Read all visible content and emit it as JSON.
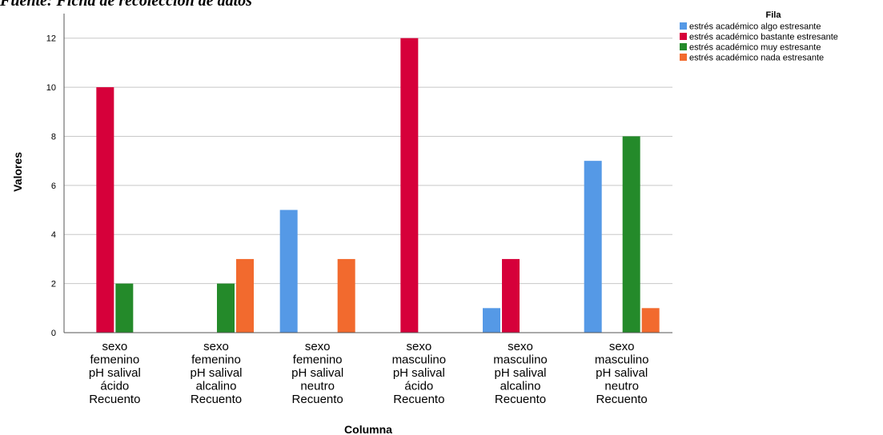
{
  "caption": "Fuente: Ficha de recolección de datos",
  "chart_data": {
    "type": "bar",
    "xlabel": "Columna",
    "ylabel": "Valores",
    "ylim": [
      0,
      13
    ],
    "yticks": [
      0,
      2,
      4,
      6,
      8,
      10,
      12
    ],
    "grid": true,
    "legend_title": "Fila",
    "legend_position": "top-right",
    "categories": [
      [
        "sexo",
        "femenino",
        "pH salival",
        "ácido",
        "Recuento"
      ],
      [
        "sexo",
        "femenino",
        "pH salival",
        "alcalino",
        "Recuento"
      ],
      [
        "sexo",
        "femenino",
        "pH salival",
        "neutro",
        "Recuento"
      ],
      [
        "sexo",
        "masculino",
        "pH salival",
        "ácido",
        "Recuento"
      ],
      [
        "sexo",
        "masculino",
        "pH salival",
        "alcalino",
        "Recuento"
      ],
      [
        "sexo",
        "masculino",
        "pH salival",
        "neutro",
        "Recuento"
      ]
    ],
    "series": [
      {
        "name": "estrés académico algo estresante",
        "color": "#5599e6",
        "values": [
          null,
          null,
          5,
          null,
          1,
          7
        ]
      },
      {
        "name": "estrés académico bastante estresante",
        "color": "#d6003a",
        "values": [
          10,
          null,
          null,
          12,
          3,
          null
        ]
      },
      {
        "name": "estrés académico muy estresante",
        "color": "#248a2a",
        "values": [
          2,
          2,
          null,
          null,
          null,
          8
        ]
      },
      {
        "name": "estrés académico nada estresante",
        "color": "#f26a2e",
        "values": [
          null,
          3,
          3,
          null,
          null,
          1
        ]
      }
    ]
  }
}
